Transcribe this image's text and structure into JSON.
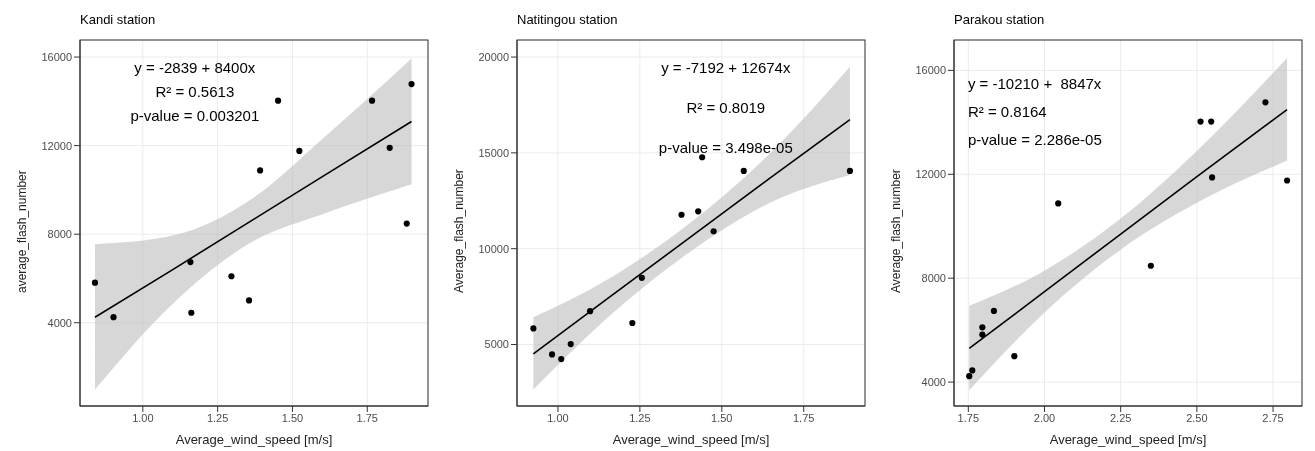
{
  "chart_data": [
    {
      "type": "scatter",
      "title": "Kandi station",
      "xlabel": "Average_wind_speed [m/s]",
      "ylabel": "average_flash_number",
      "xlim": [
        0.79,
        1.953
      ],
      "ylim": [
        240,
        16770
      ],
      "xticks": [
        {
          "value": 1,
          "label": "1.00"
        },
        {
          "value": 1.25,
          "label": "1.25"
        },
        {
          "value": 1.5,
          "label": "1.50"
        },
        {
          "value": 1.75,
          "label": "1.75"
        }
      ],
      "yticks": [
        4000,
        8000,
        12000,
        16000
      ],
      "grid": true,
      "annotations": [
        "y = -2839 + 8400x",
        "R² = 0.5613",
        "p-value = 0.003201"
      ],
      "series": [
        {
          "type": "scatter",
          "marker": "circle",
          "color": "#000000",
          "x": [
            0.84,
            0.902,
            1.159,
            1.162,
            1.296,
            1.355,
            1.392,
            1.452,
            1.523,
            1.766,
            1.825,
            1.882,
            1.898
          ],
          "values": [
            5810,
            4250,
            6740,
            4450,
            6100,
            5010,
            10880,
            14030,
            11760,
            14030,
            11900,
            8480,
            14780
          ]
        },
        {
          "type": "line",
          "marker": "none",
          "color": "#000000",
          "x": [
            0.84,
            1.1,
            1.37,
            1.6,
            1.898
          ],
          "values": [
            4250,
            6400,
            8670,
            10600,
            13090
          ],
          "lower": [
            980,
            4860,
            7690,
            8900,
            10250
          ],
          "upper": [
            7550,
            7940,
            9650,
            12300,
            15930
          ]
        }
      ]
    },
    {
      "type": "scatter",
      "title": "Natitingou station",
      "xlabel": "Average_wind_speed [m/s]",
      "ylabel": "Average_flash_number",
      "xlim": [
        0.875,
        1.937
      ],
      "ylim": [
        1790,
        20890
      ],
      "xticks": [
        {
          "value": 1,
          "label": "1.00"
        },
        {
          "value": 1.25,
          "label": "1.25"
        },
        {
          "value": 1.5,
          "label": "1.50"
        },
        {
          "value": 1.75,
          "label": "1.75"
        }
      ],
      "yticks": [
        5000,
        10000,
        15000,
        20000
      ],
      "grid": true,
      "annotations": [
        "y = -7192 + 12674x",
        "R² = 0.8019",
        "p-value = 3.498e-05"
      ],
      "series": [
        {
          "type": "scatter",
          "marker": "circle",
          "color": "#000000",
          "x": [
            0.925,
            0.982,
            1.01,
            1.039,
            1.098,
            1.227,
            1.256,
            1.377,
            1.428,
            1.44,
            1.475,
            1.567,
            1.891
          ],
          "values": [
            5840,
            4480,
            4240,
            5020,
            6740,
            6120,
            8480,
            11770,
            11950,
            14770,
            10910,
            14060,
            14060
          ]
        },
        {
          "type": "line",
          "marker": "none",
          "color": "#000000",
          "x": [
            0.925,
            1.15,
            1.4,
            1.65,
            1.891
          ],
          "values": [
            4510,
            7380,
            10550,
            13720,
            16740
          ],
          "lower": [
            2650,
            6380,
            9800,
            12420,
            13840
          ],
          "upper": [
            6420,
            8380,
            11300,
            15020,
            19490
          ]
        }
      ]
    },
    {
      "type": "scatter",
      "title": "Parakou station",
      "xlabel": "Average_wind_speed [m/s]",
      "ylabel": "Average_flash_number",
      "xlim": [
        1.703,
        2.845
      ],
      "ylim": [
        3080,
        17170
      ],
      "xticks": [
        1.75,
        {
          "value": 2,
          "label": "2.00"
        },
        2.25,
        {
          "value": 2.5,
          "label": "2.50"
        },
        2.75
      ],
      "yticks": [
        4000,
        8000,
        12000,
        16000
      ],
      "grid": true,
      "annotations": [
        "y = -10210 +  8847x",
        "R² = 0.8164",
        "p-value = 2.286e-05"
      ],
      "series": [
        {
          "type": "scatter",
          "marker": "circle",
          "color": "#000000",
          "x": [
            1.753,
            1.763,
            1.796,
            1.796,
            1.834,
            1.901,
            2.045,
            2.349,
            2.512,
            2.547,
            2.55,
            2.725,
            2.796
          ],
          "values": [
            4230,
            4450,
            5830,
            6110,
            6740,
            5000,
            10880,
            8480,
            14030,
            14030,
            11880,
            14770,
            11760
          ]
        },
        {
          "type": "line",
          "marker": "none",
          "color": "#000000",
          "x": [
            1.753,
            2.0,
            2.25,
            2.5,
            2.796
          ],
          "values": [
            5300,
            7480,
            9700,
            11910,
            14490
          ],
          "lower": [
            3690,
            6680,
            9100,
            10900,
            12530
          ],
          "upper": [
            6940,
            8290,
            10300,
            12900,
            16480
          ]
        }
      ]
    }
  ]
}
